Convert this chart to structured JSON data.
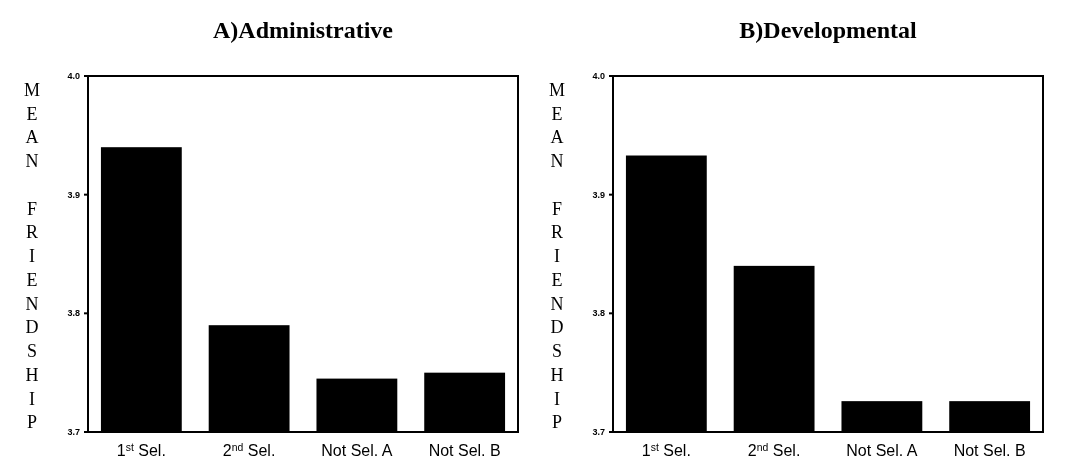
{
  "chart_data": [
    {
      "type": "bar",
      "title": "A)Administrative",
      "ylabel": "MEAN FRIENDSHIP",
      "categories": [
        "1$^{st}$ Sel.",
        "2$^{nd}$ Sel.",
        "Not Sel. A",
        "Not Sel. B"
      ],
      "values": [
        3.94,
        3.79,
        3.745,
        3.75
      ],
      "color": "#000000",
      "ylim": [
        3.7,
        4.0
      ],
      "yticks": [
        {
          "value": 3.7,
          "label": "3.7"
        },
        {
          "value": 3.8,
          "label": "3.8"
        },
        {
          "value": 3.9,
          "label": "3.9"
        },
        {
          "value": 4.0,
          "label": "4.0"
        }
      ],
      "grid": false
    },
    {
      "type": "bar",
      "title": "B)Developmental",
      "ylabel": "MEAN FRIENDSHIP",
      "categories": [
        "1$^{st}$ Sel.",
        "2$^{nd}$ Sel.",
        "Not Sel. A",
        "Not Sel. B"
      ],
      "values": [
        3.933,
        3.84,
        3.726,
        3.726
      ],
      "color": "#000000",
      "ylim": [
        3.7,
        4.0
      ],
      "yticks": [
        {
          "value": 3.7,
          "label": "3.7"
        },
        {
          "value": 3.8,
          "label": "3.8"
        },
        {
          "value": 3.9,
          "label": "3.9"
        },
        {
          "value": 4.0,
          "label": "4.0"
        }
      ],
      "grid": false
    }
  ]
}
